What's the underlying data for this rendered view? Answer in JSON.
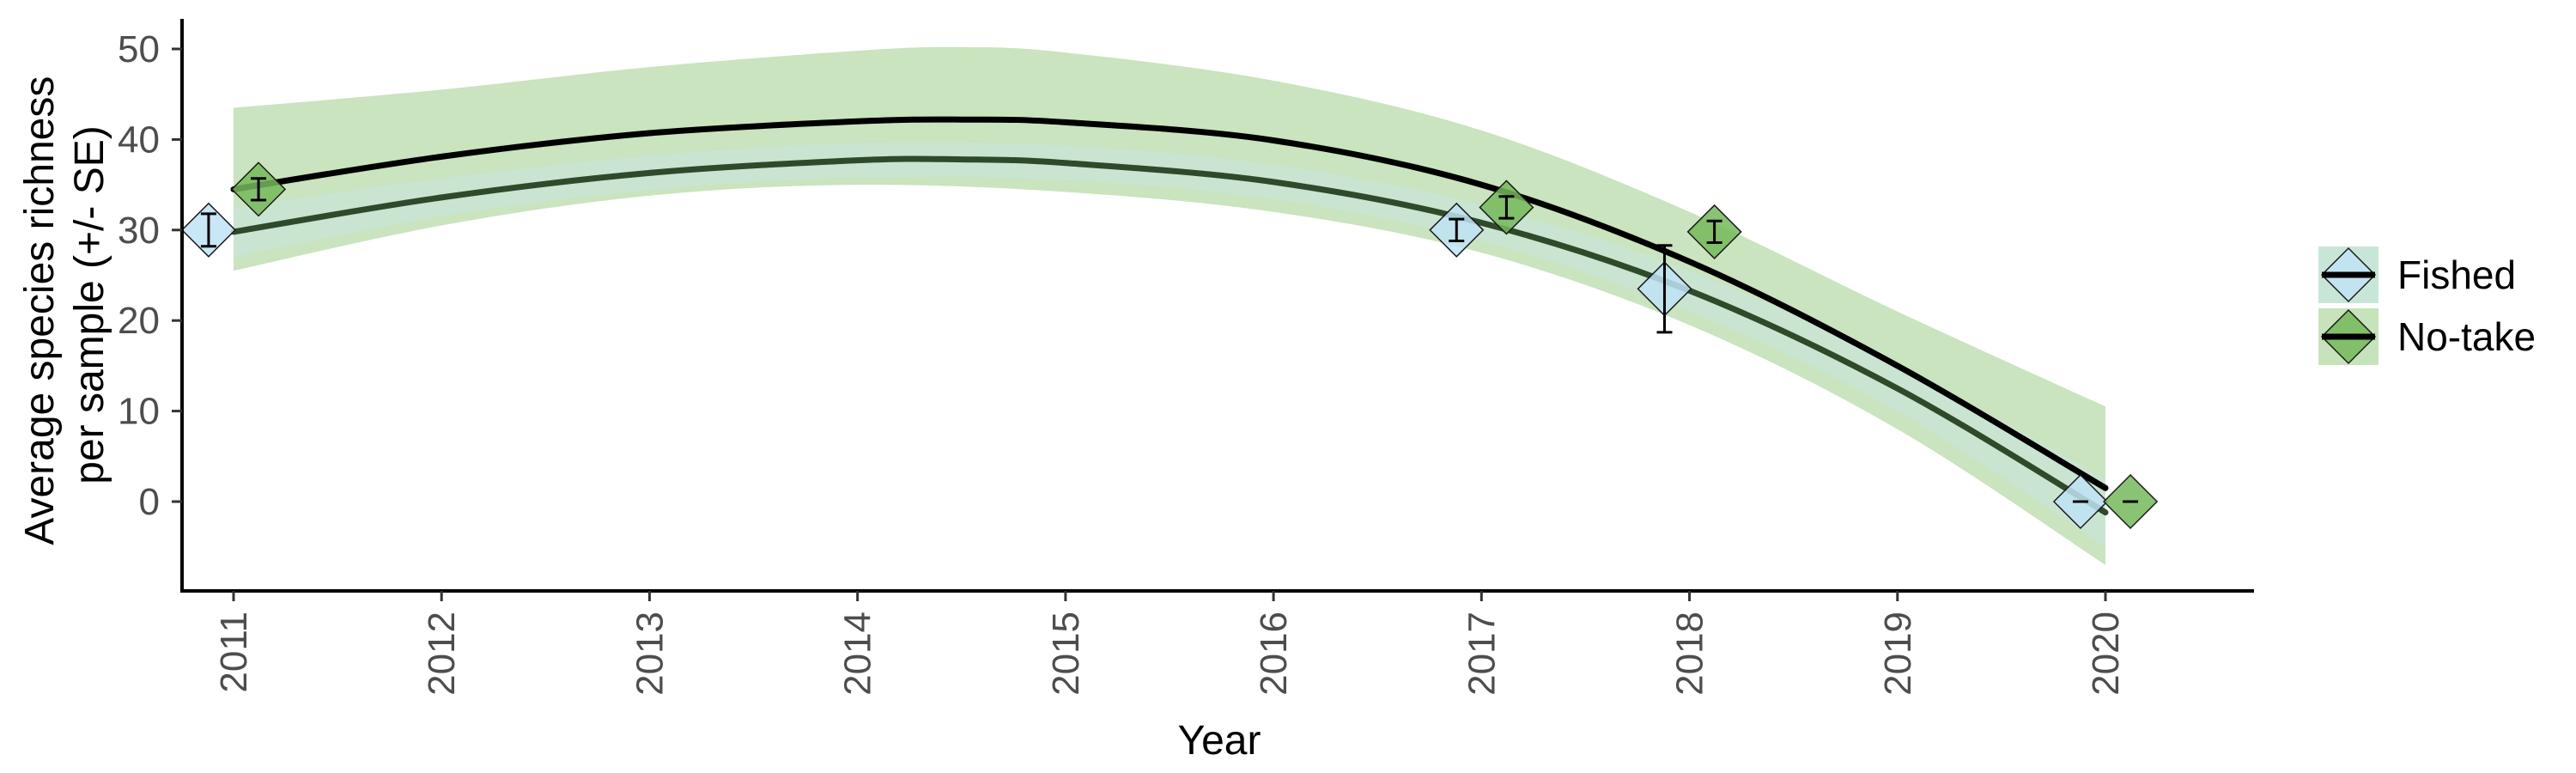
{
  "chart_data": {
    "type": "line",
    "xlabel": "Year",
    "ylabel": [
      "Average species richness",
      "per sample (+/- SE)"
    ],
    "xlim": [
      2010.75,
      2020.7
    ],
    "ylim": [
      -10,
      53
    ],
    "x_ticks": [
      "2011",
      "2012",
      "2013",
      "2014",
      "2015",
      "2016",
      "2017",
      "2018",
      "2019",
      "2020"
    ],
    "y_ticks": [
      "0",
      "10",
      "20",
      "30",
      "40",
      "50"
    ],
    "grid": false,
    "legend_position": "right",
    "legend": [
      {
        "label": "Fished"
      },
      {
        "label": "No-take"
      }
    ],
    "series": [
      {
        "name": "Fished",
        "point_color": "#bfe3f5",
        "line_color": "#2f4a2b",
        "band_color": "#c8e6d7",
        "points": [
          {
            "x": 2010.88,
            "y": 30,
            "se": 1.8
          },
          {
            "x": 2016.88,
            "y": 30,
            "se": 1.2
          },
          {
            "x": 2017.88,
            "y": 23.5,
            "se": 4.8
          },
          {
            "x": 2019.88,
            "y": 0,
            "se": 0
          }
        ],
        "fit": [
          {
            "x": 2011,
            "y": 29.8
          },
          {
            "x": 2012,
            "y": 33.6
          },
          {
            "x": 2013,
            "y": 36.3
          },
          {
            "x": 2014,
            "y": 37.7
          },
          {
            "x": 2014.5,
            "y": 37.8
          },
          {
            "x": 2015,
            "y": 37.4
          },
          {
            "x": 2016,
            "y": 35.3
          },
          {
            "x": 2017,
            "y": 30.8
          },
          {
            "x": 2018,
            "y": 23.3
          },
          {
            "x": 2019,
            "y": 12.5
          },
          {
            "x": 2020,
            "y": -1.2
          }
        ],
        "band_upper": [
          {
            "x": 2011,
            "y": 32.5
          },
          {
            "x": 2012,
            "y": 35.7
          },
          {
            "x": 2013,
            "y": 38.2
          },
          {
            "x": 2014,
            "y": 39.6
          },
          {
            "x": 2015,
            "y": 39.3
          },
          {
            "x": 2016,
            "y": 37.2
          },
          {
            "x": 2017,
            "y": 32.8
          },
          {
            "x": 2018,
            "y": 25.5
          },
          {
            "x": 2019,
            "y": 15.0
          },
          {
            "x": 2020,
            "y": 2.5
          }
        ],
        "band_lower": [
          {
            "x": 2011,
            "y": 27.0
          },
          {
            "x": 2012,
            "y": 31.5
          },
          {
            "x": 2013,
            "y": 34.4
          },
          {
            "x": 2014,
            "y": 35.8
          },
          {
            "x": 2015,
            "y": 35.5
          },
          {
            "x": 2016,
            "y": 33.4
          },
          {
            "x": 2017,
            "y": 28.8
          },
          {
            "x": 2018,
            "y": 21.0
          },
          {
            "x": 2019,
            "y": 10.0
          },
          {
            "x": 2020,
            "y": -5.0
          }
        ]
      },
      {
        "name": "No-take",
        "point_color": "#76b95a",
        "line_color": "#000000",
        "band_color": "#c6e3bb",
        "points": [
          {
            "x": 2011.12,
            "y": 34.5,
            "se": 1.2
          },
          {
            "x": 2017.12,
            "y": 32.5,
            "se": 1.2
          },
          {
            "x": 2018.12,
            "y": 29.8,
            "se": 1.2
          },
          {
            "x": 2020.12,
            "y": 0,
            "se": 0
          }
        ],
        "fit": [
          {
            "x": 2011,
            "y": 34.5
          },
          {
            "x": 2012,
            "y": 38.1
          },
          {
            "x": 2013,
            "y": 40.7
          },
          {
            "x": 2014,
            "y": 42.0
          },
          {
            "x": 2014.5,
            "y": 42.2
          },
          {
            "x": 2015,
            "y": 41.9
          },
          {
            "x": 2016,
            "y": 39.9
          },
          {
            "x": 2017,
            "y": 35.0
          },
          {
            "x": 2018,
            "y": 26.5
          },
          {
            "x": 2019,
            "y": 15.0
          },
          {
            "x": 2020,
            "y": 1.5
          }
        ],
        "band_upper": [
          {
            "x": 2011,
            "y": 43.5
          },
          {
            "x": 2012,
            "y": 45.5
          },
          {
            "x": 2013,
            "y": 48.0
          },
          {
            "x": 2014,
            "y": 49.8
          },
          {
            "x": 2014.5,
            "y": 50.2
          },
          {
            "x": 2015,
            "y": 49.6
          },
          {
            "x": 2016,
            "y": 46.5
          },
          {
            "x": 2017,
            "y": 41.0
          },
          {
            "x": 2018,
            "y": 32.0
          },
          {
            "x": 2019,
            "y": 21.0
          },
          {
            "x": 2020,
            "y": 10.5
          }
        ],
        "band_lower": [
          {
            "x": 2011,
            "y": 25.5
          },
          {
            "x": 2012,
            "y": 30.5
          },
          {
            "x": 2013,
            "y": 33.8
          },
          {
            "x": 2014,
            "y": 35.0
          },
          {
            "x": 2015,
            "y": 34.2
          },
          {
            "x": 2016,
            "y": 32.0
          },
          {
            "x": 2017,
            "y": 27.5
          },
          {
            "x": 2018,
            "y": 19.5
          },
          {
            "x": 2019,
            "y": 8.0
          },
          {
            "x": 2020,
            "y": -7.0
          }
        ]
      }
    ]
  }
}
